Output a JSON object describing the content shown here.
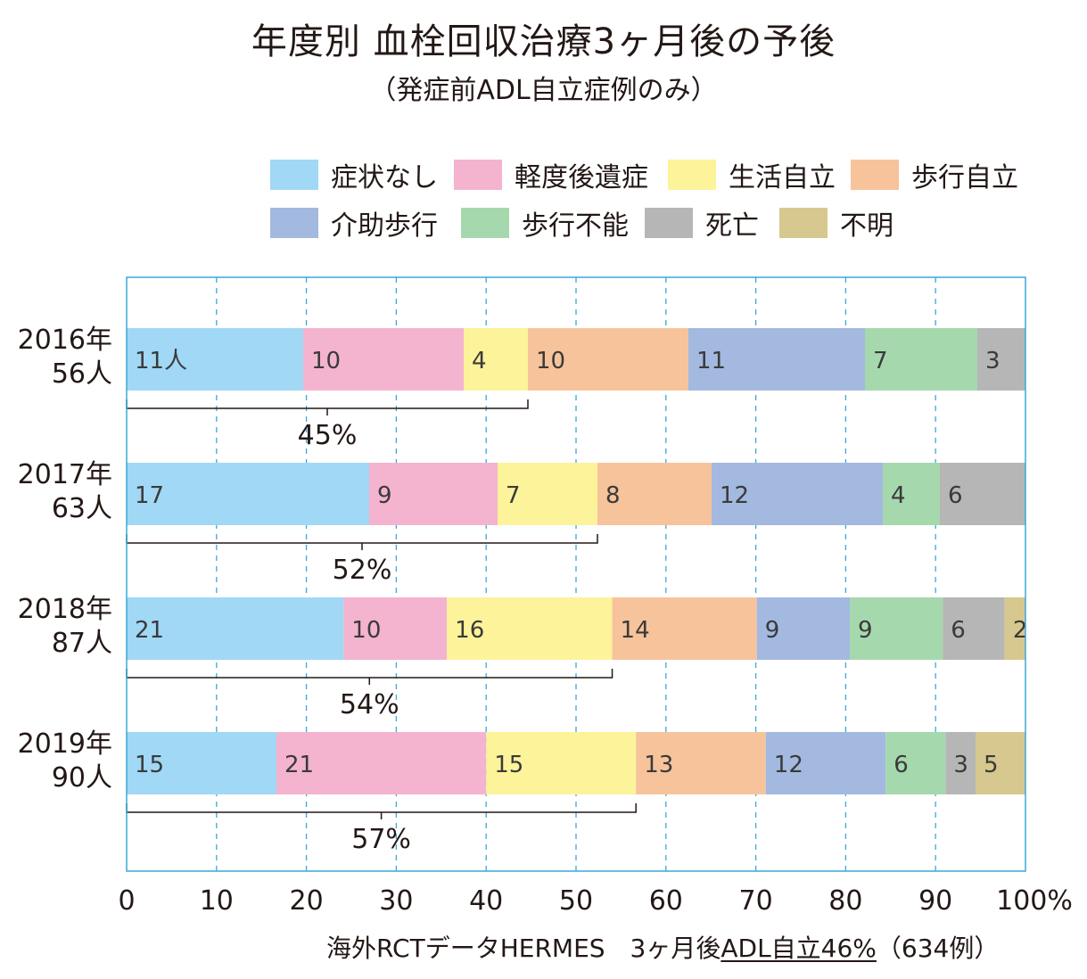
{
  "chart_data": {
    "type": "bar",
    "orientation": "horizontal",
    "stacked": "percent",
    "title": "年度別 血栓回収治療3ヶ月後の予後",
    "subtitle": "（発症前ADL自立症例のみ）",
    "categories": [
      {
        "year": "2016年",
        "n": "56人"
      },
      {
        "year": "2017年",
        "n": "63人"
      },
      {
        "year": "2018年",
        "n": "87人"
      },
      {
        "year": "2019年",
        "n": "90人"
      }
    ],
    "series": [
      {
        "name": "症状なし",
        "color": "#a0d8f5",
        "values": [
          11,
          17,
          21,
          15
        ]
      },
      {
        "name": "軽度後遺症",
        "color": "#f4b3cf",
        "values": [
          10,
          9,
          10,
          21
        ]
      },
      {
        "name": "生活自立",
        "color": "#fdf39a",
        "values": [
          4,
          7,
          16,
          15
        ]
      },
      {
        "name": "歩行自立",
        "color": "#f7c39b",
        "values": [
          10,
          8,
          14,
          13
        ]
      },
      {
        "name": "介助歩行",
        "color": "#a3b9e0",
        "values": [
          11,
          12,
          9,
          12
        ]
      },
      {
        "name": "歩行不能",
        "color": "#a6d8ae",
        "values": [
          7,
          4,
          9,
          6
        ]
      },
      {
        "name": "死亡",
        "color": "#b6b6b6",
        "values": [
          3,
          6,
          6,
          3
        ]
      },
      {
        "name": "不明",
        "color": "#d6c88e",
        "values": [
          0,
          0,
          2,
          5
        ]
      }
    ],
    "first_value_suffix": "人",
    "brackets": [
      "45%",
      "52%",
      "54%",
      "57%"
    ],
    "bracket_series_count": 3,
    "xlim": [
      0,
      100
    ],
    "x_ticks": [
      "0",
      "10",
      "20",
      "30",
      "40",
      "50",
      "60",
      "70",
      "80",
      "90",
      "100%"
    ],
    "grid": "vertical dashed",
    "legend_position": "top",
    "frame_color": "#3aa8d8"
  },
  "footnote": {
    "prefix": "海外RCTデータHERMES　3ヶ月後",
    "underlined": "ADL自立46%",
    "suffix": "（634例）"
  }
}
